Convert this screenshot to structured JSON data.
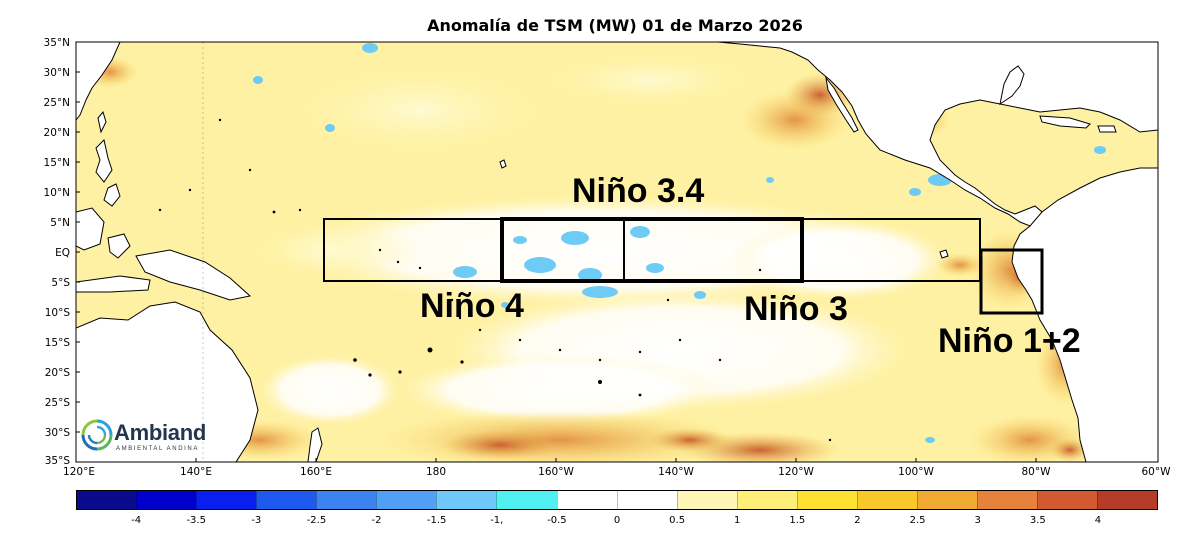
{
  "title": "Anomalía de TSM (MW) 01 de Marzo 2026",
  "lat_labels": [
    "35°N",
    "30°N",
    "25°N",
    "20°N",
    "15°N",
    "10°N",
    "5°N",
    "EQ",
    "5°S",
    "10°S",
    "15°S",
    "20°S",
    "25°S",
    "30°S",
    "35°S"
  ],
  "lon_labels": [
    "120°E",
    "140°E",
    "160°E",
    "180",
    "160°W",
    "140°W",
    "120°W",
    "100°W",
    "80°W",
    "60°W"
  ],
  "regions": {
    "nino4": "Niño 4",
    "nino34": "Niño 3.4",
    "nino3": "Niño 3",
    "nino12": "Niño 1+2"
  },
  "colorbar": {
    "colors": [
      "#0a0a8c",
      "#0000cd",
      "#0a1ef0",
      "#1e5af0",
      "#3c82f0",
      "#50a0f5",
      "#6ec8fa",
      "#50f0f0",
      "#ffffff",
      "#ffffff",
      "#fff5b4",
      "#ffee78",
      "#ffe132",
      "#fac828",
      "#f0aa32",
      "#e6823c",
      "#d25a32",
      "#b43c28"
    ],
    "tick_labels": [
      "-4",
      "-3.5",
      "-3",
      "-2.5",
      "-2",
      "-1.5",
      "-1,",
      "-0.5",
      "0",
      "0.5",
      "1",
      "1.5",
      "2",
      "2.5",
      "3",
      "3.5",
      "4"
    ]
  },
  "logo": {
    "name": "Ambiand",
    "subtitle": "AMBIENTAL ANDINA"
  }
}
